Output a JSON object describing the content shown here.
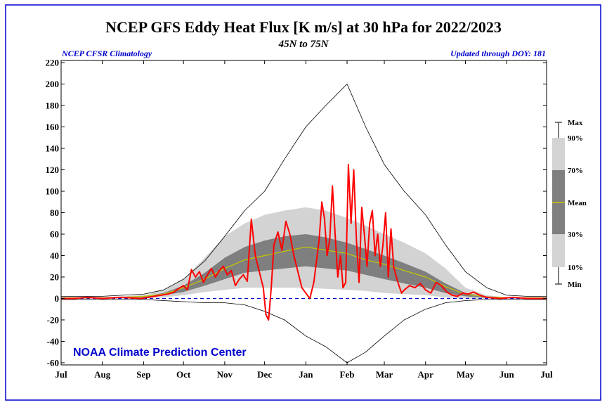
{
  "chart_data": {
    "type": "area",
    "title": "NCEP GFS Eddy Heat Flux [K m/s] at 30 hPa for 2022/2023",
    "subtitle": "45N to 75N",
    "left_note": "NCEP CFSR Climatology",
    "right_note": "Updated through DOY: 181",
    "credit": "NOAA Climate Prediction Center",
    "ylim": [
      -62,
      222
    ],
    "y_ticks": [
      220,
      200,
      180,
      160,
      140,
      120,
      100,
      80,
      60,
      40,
      20,
      0,
      -20,
      -40,
      -60
    ],
    "x_months": [
      "Jul",
      "Aug",
      "Sep",
      "Oct",
      "Nov",
      "Dec",
      "Jan",
      "Feb",
      "Mar",
      "Apr",
      "May",
      "Jun",
      "Jul"
    ],
    "x_days": [
      0,
      31,
      62,
      92,
      123,
      153,
      184,
      215,
      243,
      274,
      304,
      335,
      365
    ],
    "legend_labels": {
      "max": "Max",
      "p90": "90%",
      "p70": "70%",
      "mean": "Mean",
      "p30": "30%",
      "p10": "10%",
      "min": "Min"
    },
    "colors": {
      "band_outer": "#d3d3d3",
      "band_inner": "#7f7f7f",
      "mean": "#c8c800",
      "observed": "#ff0000",
      "extremes": "#000000",
      "zero_line": "#0000cc",
      "notes": "#0000cc"
    },
    "climatology": {
      "days": [
        0,
        15,
        31,
        46,
        62,
        77,
        92,
        108,
        123,
        138,
        153,
        168,
        184,
        199,
        215,
        229,
        243,
        258,
        274,
        289,
        304,
        320,
        335,
        350,
        365
      ],
      "max": [
        2,
        2,
        2,
        3,
        4,
        8,
        18,
        35,
        58,
        82,
        100,
        130,
        160,
        180,
        200,
        160,
        125,
        100,
        78,
        50,
        25,
        10,
        3,
        2,
        2
      ],
      "p90": [
        1,
        1,
        1,
        2,
        3,
        8,
        18,
        38,
        58,
        70,
        78,
        82,
        85,
        82,
        75,
        68,
        60,
        52,
        42,
        28,
        10,
        3,
        1,
        1,
        1
      ],
      "p70": [
        1,
        1,
        1,
        1,
        2,
        5,
        12,
        24,
        38,
        48,
        54,
        58,
        60,
        57,
        52,
        46,
        40,
        33,
        25,
        14,
        5,
        2,
        1,
        1,
        1
      ],
      "mean": [
        0.5,
        0.5,
        0.5,
        1,
        2,
        4,
        10,
        18,
        28,
        36,
        40,
        44,
        48,
        45,
        42,
        36,
        32,
        26,
        20,
        11,
        4,
        1.5,
        0.8,
        0.5,
        0.5
      ],
      "p30": [
        0,
        0,
        0,
        0.5,
        1,
        3,
        6,
        12,
        18,
        24,
        26,
        28,
        30,
        28,
        26,
        22,
        18,
        14,
        10,
        5,
        2,
        0.5,
        0,
        0,
        0
      ],
      "p10": [
        0,
        0,
        0,
        0,
        0,
        1,
        3,
        6,
        8,
        10,
        10,
        10,
        10,
        9,
        8,
        7,
        5,
        4,
        3,
        1,
        0,
        0,
        0,
        0,
        0
      ],
      "min": [
        -1,
        -1,
        -1,
        -1,
        -1,
        -2,
        -3,
        -4,
        -4,
        -6,
        -12,
        -20,
        -35,
        -45,
        -60,
        -50,
        -35,
        -20,
        -10,
        -4,
        -2,
        -1,
        -1,
        -1,
        -1
      ]
    },
    "observed": {
      "days": [
        0,
        10,
        20,
        31,
        45,
        60,
        70,
        80,
        85,
        88,
        92,
        95,
        98,
        101,
        104,
        107,
        110,
        113,
        116,
        119,
        122,
        125,
        128,
        131,
        134,
        137,
        140,
        143,
        146,
        149,
        152,
        154,
        156,
        158,
        160,
        163,
        166,
        169,
        172,
        175,
        178,
        181,
        184,
        187,
        190,
        192,
        194,
        196,
        198,
        200,
        202,
        204,
        206,
        208,
        210,
        212,
        214,
        216,
        218,
        220,
        222,
        224,
        226,
        228,
        230,
        232,
        234,
        236,
        238,
        240,
        242,
        244,
        246,
        248,
        250,
        252,
        254,
        256,
        258,
        262,
        266,
        270,
        274,
        278,
        282,
        286,
        290,
        294,
        298,
        302,
        306,
        310,
        315,
        320,
        330,
        340,
        350,
        365
      ],
      "values": [
        0,
        0,
        1,
        0,
        1,
        0,
        2,
        4,
        6,
        9,
        12,
        8,
        27,
        20,
        25,
        15,
        22,
        28,
        20,
        26,
        30,
        22,
        26,
        12,
        18,
        22,
        16,
        74,
        40,
        25,
        10,
        -15,
        -20,
        10,
        50,
        62,
        45,
        72,
        60,
        40,
        25,
        10,
        5,
        0,
        15,
        35,
        55,
        90,
        75,
        40,
        55,
        105,
        60,
        20,
        40,
        10,
        15,
        125,
        70,
        120,
        55,
        15,
        85,
        60,
        30,
        70,
        82,
        40,
        60,
        30,
        50,
        80,
        20,
        65,
        30,
        20,
        12,
        5,
        8,
        12,
        10,
        14,
        8,
        5,
        15,
        12,
        6,
        3,
        2,
        5,
        4,
        6,
        3,
        1,
        0,
        1,
        0,
        0
      ]
    }
  }
}
